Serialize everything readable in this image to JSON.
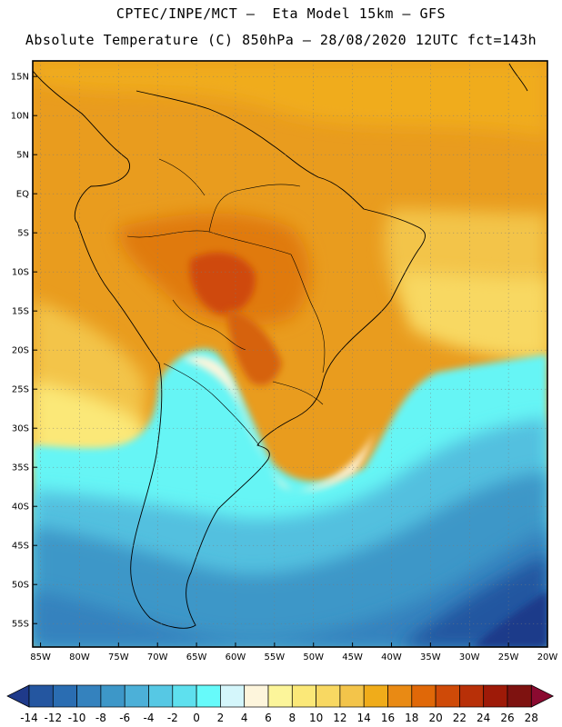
{
  "header": {
    "line1": "CPTEC/INPE/MCT –  Eta Model 15km – GFS",
    "line2": "Absolute Temperature (C) 850hPa – 28/08/2020 12UTC fct=143h"
  },
  "map": {
    "lon_range": [
      -86,
      -20
    ],
    "lat_range": [
      -58,
      17
    ],
    "lat_labels": [
      "15N",
      "10N",
      "5N",
      "EQ",
      "5S",
      "10S",
      "15S",
      "20S",
      "25S",
      "30S",
      "35S",
      "40S",
      "45S",
      "50S",
      "55S"
    ],
    "lat_values": [
      15,
      10,
      5,
      0,
      -5,
      -10,
      -15,
      -20,
      -25,
      -30,
      -35,
      -40,
      -45,
      -50,
      -55
    ],
    "lon_labels": [
      "85W",
      "80W",
      "75W",
      "70W",
      "65W",
      "60W",
      "55W",
      "50W",
      "45W",
      "40W",
      "35W",
      "30W",
      "25W",
      "20W"
    ],
    "lon_values": [
      -85,
      -80,
      -75,
      -70,
      -65,
      -60,
      -55,
      -50,
      -45,
      -40,
      -35,
      -30,
      -25,
      -20
    ]
  },
  "colorbar": {
    "labels": [
      "-14",
      "-12",
      "-10",
      "-8",
      "-6",
      "-4",
      "-2",
      "0",
      "2",
      "4",
      "6",
      "8",
      "10",
      "12",
      "14",
      "16",
      "18",
      "20",
      "22",
      "24",
      "26",
      "28"
    ],
    "colors": [
      "#1f3a8a",
      "#2456a0",
      "#2a6db2",
      "#3482be",
      "#3d97c8",
      "#4cb0d8",
      "#56c8e4",
      "#5ee0ee",
      "#66fafa",
      "#d4f6fb",
      "#fdf5dc",
      "#fcf59a",
      "#fbe878",
      "#f8d862",
      "#f3c44a",
      "#f0ac1a",
      "#e98a14",
      "#e06808",
      "#cf4a08",
      "#b83008",
      "#9e1a08",
      "#7e1210",
      "#8a0a30"
    ]
  }
}
